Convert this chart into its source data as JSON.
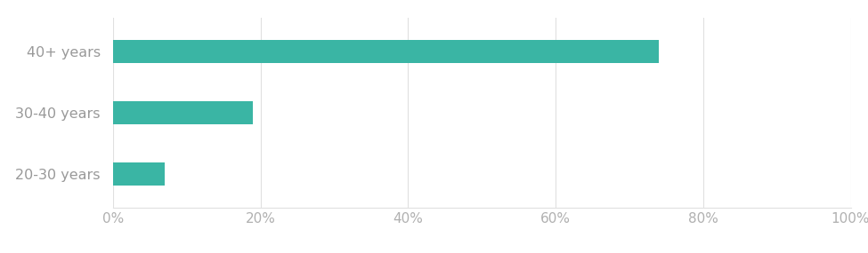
{
  "categories": [
    "20-30 years",
    "30-40 years",
    "40+ years"
  ],
  "values": [
    0.07,
    0.19,
    0.74
  ],
  "bar_color": "#3ab5a4",
  "bar_height": 0.38,
  "xlim": [
    0,
    1.0
  ],
  "xticks": [
    0.0,
    0.2,
    0.4,
    0.6,
    0.8,
    1.0
  ],
  "xtick_labels": [
    "0%",
    "20%",
    "40%",
    "60%",
    "80%",
    "100%"
  ],
  "tick_label_color": "#b0b0b0",
  "category_label_color": "#999999",
  "grid_color": "#e0e0e0",
  "background_color": "#ffffff",
  "label_fontsize": 11.5,
  "tick_fontsize": 11
}
